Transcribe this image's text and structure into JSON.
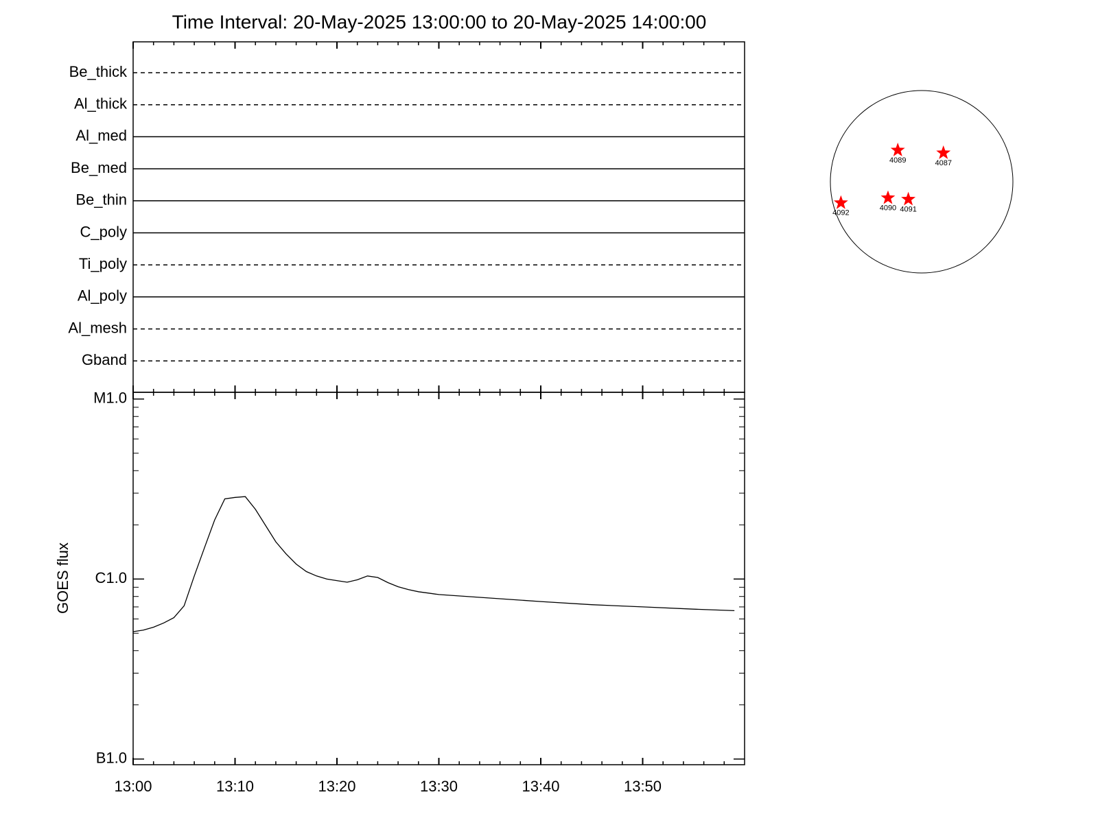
{
  "chart_data": [
    {
      "type": "timeline",
      "title": "Time Interval: 20-May-2025 13:00:00 to 20-May-2025 14:00:00",
      "categories": [
        "Be_thick",
        "Al_thick",
        "Al_med",
        "Be_med",
        "Be_thin",
        "C_poly",
        "Ti_poly",
        "Al_poly",
        "Al_mesh",
        "Gband"
      ],
      "line_styles": [
        "dashed",
        "dashed",
        "solid",
        "solid",
        "solid",
        "solid",
        "dashed",
        "solid",
        "dashed",
        "dashed"
      ],
      "color": "#000000"
    },
    {
      "type": "line",
      "ylabel": "GOES flux",
      "log_scale": true,
      "color": "#000000",
      "xlim": [
        "13:00",
        "14:00"
      ],
      "xticks": [
        "13:00",
        "13:10",
        "13:20",
        "13:30",
        "13:40",
        "13:50"
      ],
      "xminor": [
        "13:02",
        "13:04",
        "13:06",
        "13:08",
        "13:12",
        "13:14",
        "13:16",
        "13:18",
        "13:22",
        "13:24",
        "13:26",
        "13:28",
        "13:32",
        "13:34",
        "13:36",
        "13:38",
        "13:42",
        "13:44",
        "13:46",
        "13:48",
        "13:52",
        "13:54",
        "13:56",
        "13:58"
      ],
      "ylim": [
        9.3e-08,
        1.09e-05
      ],
      "yticks": [
        {
          "value": 1e-07,
          "label": "B1.0"
        },
        {
          "value": 1e-06,
          "label": "C1.0"
        },
        {
          "value": 1e-05,
          "label": "M1.0"
        }
      ],
      "yminor": [
        2e-07,
        3e-07,
        4e-07,
        5e-07,
        6e-07,
        7e-07,
        8e-07,
        9e-07,
        2e-06,
        3e-06,
        4e-06,
        5e-06,
        6e-06,
        7e-06,
        8e-06,
        9e-06
      ],
      "x": [
        "13:00",
        "13:01",
        "13:02",
        "13:03",
        "13:04",
        "13:05",
        "13:06",
        "13:07",
        "13:08",
        "13:09",
        "13:10",
        "13:11",
        "13:12",
        "13:13",
        "13:14",
        "13:15",
        "13:16",
        "13:17",
        "13:18",
        "13:19",
        "13:20",
        "13:21",
        "13:22",
        "13:23",
        "13:24",
        "13:25",
        "13:26",
        "13:27",
        "13:28",
        "13:29",
        "13:30",
        "13:35",
        "13:40",
        "13:45",
        "13:50",
        "13:55",
        "13:59"
      ],
      "values": [
        5.1e-07,
        5.2e-07,
        5.4e-07,
        5.7e-07,
        6.1e-07,
        7.1e-07,
        1.04e-06,
        1.49e-06,
        2.13e-06,
        2.79e-06,
        2.84e-06,
        2.87e-06,
        2.44e-06,
        1.98e-06,
        1.61e-06,
        1.38e-06,
        1.21e-06,
        1.1e-06,
        1.04e-06,
        1e-06,
        9.8e-07,
        9.6e-07,
        9.9e-07,
        1.04e-06,
        1.02e-06,
        9.55e-07,
        9.06e-07,
        8.74e-07,
        8.5e-07,
        8.35e-07,
        8.2e-07,
        7.84e-07,
        7.5e-07,
        7.2e-07,
        7e-07,
        6.8e-07,
        6.67e-07
      ]
    },
    {
      "type": "disk",
      "radius": 960,
      "marker_color": "#ff0000",
      "regions": [
        {
          "label": "4089",
          "x": -251,
          "y": 332
        },
        {
          "label": "4087",
          "x": 229,
          "y": 303
        },
        {
          "label": "4092",
          "x": -849,
          "y": -222
        },
        {
          "label": "4090",
          "x": -354,
          "y": -170
        },
        {
          "label": "4091",
          "x": -140,
          "y": -185
        }
      ]
    }
  ]
}
